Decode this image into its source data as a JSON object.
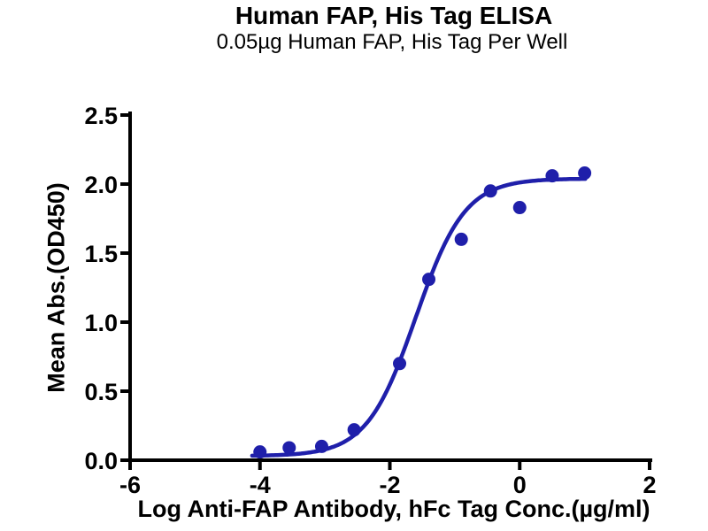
{
  "header": {
    "title": "Human FAP, His Tag ELISA",
    "subtitle": "0.05µg Human FAP, His Tag Per Well"
  },
  "chart_data": {
    "type": "scatter",
    "title": "Human FAP, His Tag ELISA",
    "subtitle": "0.05µg Human FAP, His Tag Per Well",
    "xlabel": "Log Anti-FAP Antibody, hFc Tag Conc.(µg/ml)",
    "ylabel": "Mean Abs.(OD450)",
    "xlim": [
      -6,
      2
    ],
    "ylim": [
      0,
      2.5
    ],
    "x_ticks": [
      -6,
      -4,
      -2,
      0,
      2
    ],
    "y_ticks": [
      0.0,
      0.5,
      1.0,
      1.5,
      2.0,
      2.5
    ],
    "grid": false,
    "legend": null,
    "marker_color": "#1f1faa",
    "line_color": "#1f1faa",
    "axis_color": "#000000",
    "points": [
      {
        "x": -4.0,
        "y": 0.06
      },
      {
        "x": -3.55,
        "y": 0.09
      },
      {
        "x": -3.05,
        "y": 0.1
      },
      {
        "x": -2.55,
        "y": 0.22
      },
      {
        "x": -1.85,
        "y": 0.7
      },
      {
        "x": -1.4,
        "y": 1.31
      },
      {
        "x": -0.9,
        "y": 1.6
      },
      {
        "x": -0.45,
        "y": 1.95
      },
      {
        "x": 0.0,
        "y": 1.83
      },
      {
        "x": 0.5,
        "y": 2.06
      },
      {
        "x": 1.0,
        "y": 2.08
      }
    ],
    "curve_fit": {
      "model": "4PL",
      "bottom": 0.03,
      "top": 2.04,
      "log_ec50": -1.6,
      "hill_slope": 1.15,
      "x_start": -4.12,
      "x_end": 1.02
    }
  }
}
